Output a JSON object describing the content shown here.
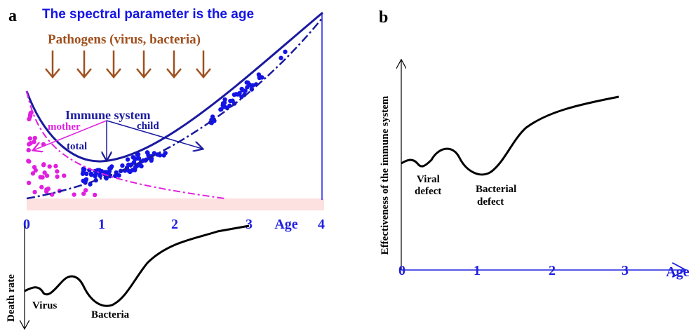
{
  "panel_a": {
    "label": "a",
    "title": "The spectral parameter is the age",
    "pathogens": "Pathogens (virus, bacteria)",
    "immune_system": "Immune system",
    "mother": "mother",
    "child": "child",
    "total": "total",
    "age_ticks": [
      "0",
      "1",
      "2",
      "3",
      "4"
    ],
    "age_label": "Age",
    "death_rate": "Death rate",
    "virus": "Virus",
    "bacteria": "Bacteria"
  },
  "panel_b": {
    "label": "b",
    "y_label": "Effectiveness of the immune system",
    "age_ticks": [
      "0",
      "1",
      "2",
      "3"
    ],
    "age_label": "Age",
    "viral_1": "Viral",
    "viral_2": "defect",
    "bacterial_1": "Bacterial",
    "bacterial_2": "defect"
  }
}
